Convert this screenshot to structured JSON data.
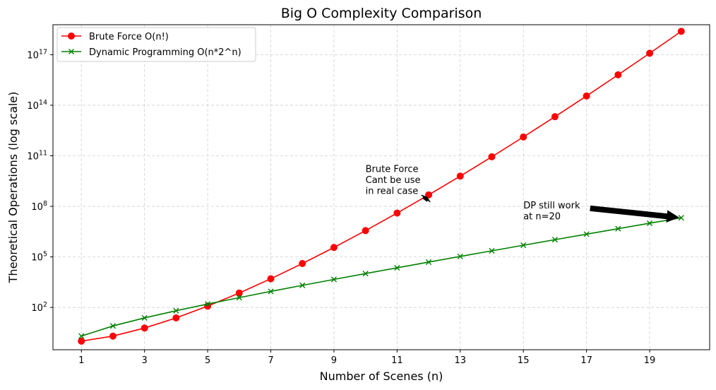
{
  "chart_data": {
    "type": "line",
    "title": "Big O Complexity Comparison",
    "xlabel": "Number of Scenes (n)",
    "ylabel": "Theoretical Operations (log scale)",
    "yscale": "log",
    "xlim": [
      0.1,
      20.9
    ],
    "ylim": [
      0.31,
      6e+18
    ],
    "grid": true,
    "legend_position": "upper-left",
    "x": [
      1,
      2,
      3,
      4,
      5,
      6,
      7,
      8,
      9,
      10,
      11,
      12,
      13,
      14,
      15,
      16,
      17,
      18,
      19,
      20
    ],
    "x_ticks": [
      1,
      3,
      5,
      7,
      9,
      11,
      13,
      15,
      17,
      19
    ],
    "y_ticks": [
      {
        "base": "10",
        "exp": "2",
        "value": 100
      },
      {
        "base": "10",
        "exp": "5",
        "value": 100000
      },
      {
        "base": "10",
        "exp": "8",
        "value": 100000000
      },
      {
        "base": "10",
        "exp": "11",
        "value": 100000000000
      },
      {
        "base": "10",
        "exp": "14",
        "value": 100000000000000
      },
      {
        "base": "10",
        "exp": "17",
        "value": 100000000000000000
      }
    ],
    "series": [
      {
        "name": "Brute Force O(n!)",
        "color": "#ff0000",
        "marker": "circle",
        "values": [
          1,
          2,
          6,
          24,
          120,
          720,
          5040,
          40320,
          362880,
          3628800,
          39916800,
          479001600,
          6227020800,
          87178291200,
          1307674368000,
          20922789888000,
          355687428096000,
          6402373705728000,
          121645100408832000,
          2432902008176640000
        ]
      },
      {
        "name": "Dynamic Programming O(n*2^n)",
        "color": "#008000",
        "marker": "x",
        "values": [
          2,
          8,
          24,
          64,
          160,
          384,
          896,
          2048,
          4608,
          10240,
          22528,
          49152,
          106496,
          229376,
          491520,
          1048576,
          2228224,
          4718592,
          9961472,
          20971520
        ]
      }
    ],
    "annotations": [
      {
        "lines": [
          "Brute Force",
          "Cant be use",
          "in real case"
        ],
        "text_at": {
          "x": 10.0,
          "y": 23000000000
        },
        "arrow_to": {
          "x": 12,
          "y": 479001600
        }
      },
      {
        "lines": [
          "DP still work",
          "at n=20"
        ],
        "text_at": {
          "x": 15.0,
          "y": 165000000
        },
        "arrow_to": {
          "x": 20,
          "y": 20971520
        }
      }
    ]
  }
}
